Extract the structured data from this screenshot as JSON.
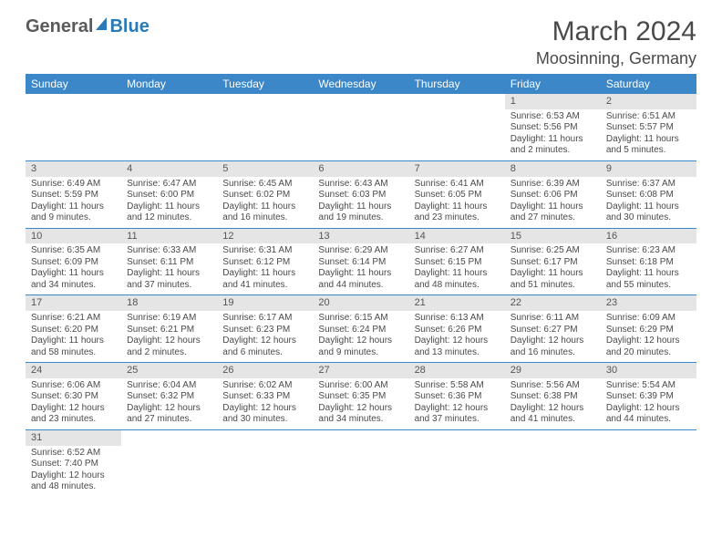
{
  "logo": {
    "part1": "General",
    "part2": "Blue"
  },
  "title": {
    "month": "March 2024",
    "location": "Moosinning, Germany"
  },
  "colors": {
    "header_bg": "#3b87c8",
    "header_text": "#ffffff",
    "daynum_bg": "#e5e5e5",
    "border": "#3b87c8",
    "text": "#4a4a4a"
  },
  "dayHeaders": [
    "Sunday",
    "Monday",
    "Tuesday",
    "Wednesday",
    "Thursday",
    "Friday",
    "Saturday"
  ],
  "weeks": [
    [
      null,
      null,
      null,
      null,
      null,
      {
        "n": "1",
        "sr": "Sunrise: 6:53 AM",
        "ss": "Sunset: 5:56 PM",
        "d1": "Daylight: 11 hours",
        "d2": "and 2 minutes."
      },
      {
        "n": "2",
        "sr": "Sunrise: 6:51 AM",
        "ss": "Sunset: 5:57 PM",
        "d1": "Daylight: 11 hours",
        "d2": "and 5 minutes."
      }
    ],
    [
      {
        "n": "3",
        "sr": "Sunrise: 6:49 AM",
        "ss": "Sunset: 5:59 PM",
        "d1": "Daylight: 11 hours",
        "d2": "and 9 minutes."
      },
      {
        "n": "4",
        "sr": "Sunrise: 6:47 AM",
        "ss": "Sunset: 6:00 PM",
        "d1": "Daylight: 11 hours",
        "d2": "and 12 minutes."
      },
      {
        "n": "5",
        "sr": "Sunrise: 6:45 AM",
        "ss": "Sunset: 6:02 PM",
        "d1": "Daylight: 11 hours",
        "d2": "and 16 minutes."
      },
      {
        "n": "6",
        "sr": "Sunrise: 6:43 AM",
        "ss": "Sunset: 6:03 PM",
        "d1": "Daylight: 11 hours",
        "d2": "and 19 minutes."
      },
      {
        "n": "7",
        "sr": "Sunrise: 6:41 AM",
        "ss": "Sunset: 6:05 PM",
        "d1": "Daylight: 11 hours",
        "d2": "and 23 minutes."
      },
      {
        "n": "8",
        "sr": "Sunrise: 6:39 AM",
        "ss": "Sunset: 6:06 PM",
        "d1": "Daylight: 11 hours",
        "d2": "and 27 minutes."
      },
      {
        "n": "9",
        "sr": "Sunrise: 6:37 AM",
        "ss": "Sunset: 6:08 PM",
        "d1": "Daylight: 11 hours",
        "d2": "and 30 minutes."
      }
    ],
    [
      {
        "n": "10",
        "sr": "Sunrise: 6:35 AM",
        "ss": "Sunset: 6:09 PM",
        "d1": "Daylight: 11 hours",
        "d2": "and 34 minutes."
      },
      {
        "n": "11",
        "sr": "Sunrise: 6:33 AM",
        "ss": "Sunset: 6:11 PM",
        "d1": "Daylight: 11 hours",
        "d2": "and 37 minutes."
      },
      {
        "n": "12",
        "sr": "Sunrise: 6:31 AM",
        "ss": "Sunset: 6:12 PM",
        "d1": "Daylight: 11 hours",
        "d2": "and 41 minutes."
      },
      {
        "n": "13",
        "sr": "Sunrise: 6:29 AM",
        "ss": "Sunset: 6:14 PM",
        "d1": "Daylight: 11 hours",
        "d2": "and 44 minutes."
      },
      {
        "n": "14",
        "sr": "Sunrise: 6:27 AM",
        "ss": "Sunset: 6:15 PM",
        "d1": "Daylight: 11 hours",
        "d2": "and 48 minutes."
      },
      {
        "n": "15",
        "sr": "Sunrise: 6:25 AM",
        "ss": "Sunset: 6:17 PM",
        "d1": "Daylight: 11 hours",
        "d2": "and 51 minutes."
      },
      {
        "n": "16",
        "sr": "Sunrise: 6:23 AM",
        "ss": "Sunset: 6:18 PM",
        "d1": "Daylight: 11 hours",
        "d2": "and 55 minutes."
      }
    ],
    [
      {
        "n": "17",
        "sr": "Sunrise: 6:21 AM",
        "ss": "Sunset: 6:20 PM",
        "d1": "Daylight: 11 hours",
        "d2": "and 58 minutes."
      },
      {
        "n": "18",
        "sr": "Sunrise: 6:19 AM",
        "ss": "Sunset: 6:21 PM",
        "d1": "Daylight: 12 hours",
        "d2": "and 2 minutes."
      },
      {
        "n": "19",
        "sr": "Sunrise: 6:17 AM",
        "ss": "Sunset: 6:23 PM",
        "d1": "Daylight: 12 hours",
        "d2": "and 6 minutes."
      },
      {
        "n": "20",
        "sr": "Sunrise: 6:15 AM",
        "ss": "Sunset: 6:24 PM",
        "d1": "Daylight: 12 hours",
        "d2": "and 9 minutes."
      },
      {
        "n": "21",
        "sr": "Sunrise: 6:13 AM",
        "ss": "Sunset: 6:26 PM",
        "d1": "Daylight: 12 hours",
        "d2": "and 13 minutes."
      },
      {
        "n": "22",
        "sr": "Sunrise: 6:11 AM",
        "ss": "Sunset: 6:27 PM",
        "d1": "Daylight: 12 hours",
        "d2": "and 16 minutes."
      },
      {
        "n": "23",
        "sr": "Sunrise: 6:09 AM",
        "ss": "Sunset: 6:29 PM",
        "d1": "Daylight: 12 hours",
        "d2": "and 20 minutes."
      }
    ],
    [
      {
        "n": "24",
        "sr": "Sunrise: 6:06 AM",
        "ss": "Sunset: 6:30 PM",
        "d1": "Daylight: 12 hours",
        "d2": "and 23 minutes."
      },
      {
        "n": "25",
        "sr": "Sunrise: 6:04 AM",
        "ss": "Sunset: 6:32 PM",
        "d1": "Daylight: 12 hours",
        "d2": "and 27 minutes."
      },
      {
        "n": "26",
        "sr": "Sunrise: 6:02 AM",
        "ss": "Sunset: 6:33 PM",
        "d1": "Daylight: 12 hours",
        "d2": "and 30 minutes."
      },
      {
        "n": "27",
        "sr": "Sunrise: 6:00 AM",
        "ss": "Sunset: 6:35 PM",
        "d1": "Daylight: 12 hours",
        "d2": "and 34 minutes."
      },
      {
        "n": "28",
        "sr": "Sunrise: 5:58 AM",
        "ss": "Sunset: 6:36 PM",
        "d1": "Daylight: 12 hours",
        "d2": "and 37 minutes."
      },
      {
        "n": "29",
        "sr": "Sunrise: 5:56 AM",
        "ss": "Sunset: 6:38 PM",
        "d1": "Daylight: 12 hours",
        "d2": "and 41 minutes."
      },
      {
        "n": "30",
        "sr": "Sunrise: 5:54 AM",
        "ss": "Sunset: 6:39 PM",
        "d1": "Daylight: 12 hours",
        "d2": "and 44 minutes."
      }
    ],
    [
      {
        "n": "31",
        "sr": "Sunrise: 6:52 AM",
        "ss": "Sunset: 7:40 PM",
        "d1": "Daylight: 12 hours",
        "d2": "and 48 minutes."
      },
      null,
      null,
      null,
      null,
      null,
      null
    ]
  ]
}
